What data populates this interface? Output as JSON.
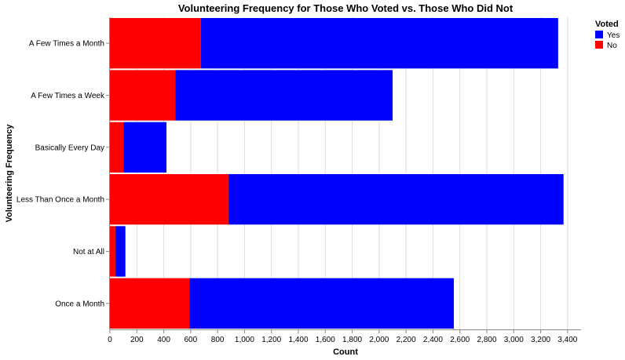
{
  "chart_data": {
    "type": "bar",
    "orientation": "horizontal",
    "stacked": true,
    "title": "Volunteering Frequency for Those Who Voted vs. Those Who Did Not",
    "xlabel": "Count",
    "ylabel": "Volunteering Frequency",
    "xlim": [
      0,
      3500
    ],
    "x_ticks": [
      "0",
      "200",
      "400",
      "600",
      "800",
      "1,000",
      "1,200",
      "1,400",
      "1,600",
      "1,800",
      "2,000",
      "2,200",
      "2,400",
      "2,600",
      "2,800",
      "3,000",
      "3,200",
      "3,400"
    ],
    "x_tick_values": [
      0,
      200,
      400,
      600,
      800,
      1000,
      1200,
      1400,
      1600,
      1800,
      2000,
      2200,
      2400,
      2600,
      2800,
      3000,
      3200,
      3400
    ],
    "grid": true,
    "categories": [
      "A Few Times a Month",
      "A Few Times a Week",
      "Basically Every Day",
      "Less Than Once a Month",
      "Not at All",
      "Once a Month"
    ],
    "series": [
      {
        "name": "No",
        "color": "#ff0000",
        "values": [
          675,
          485,
          100,
          880,
          40,
          590
        ]
      },
      {
        "name": "Yes",
        "color": "#0000ff",
        "values": [
          2655,
          1615,
          320,
          2490,
          75,
          1965
        ]
      }
    ],
    "legend": {
      "title": "Voted",
      "position": "top-right",
      "entries": [
        {
          "label": "Yes",
          "color": "#0000ff"
        },
        {
          "label": "No",
          "color": "#ff0000"
        }
      ]
    }
  }
}
